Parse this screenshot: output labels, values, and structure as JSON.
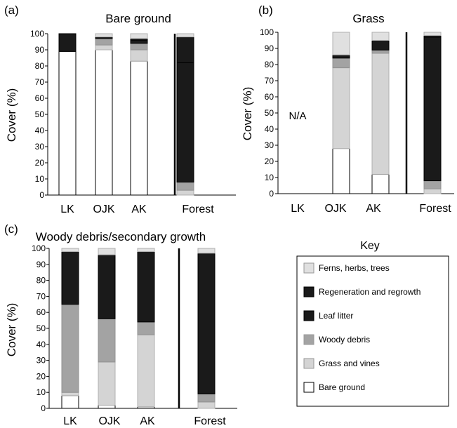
{
  "key": {
    "title": "Key",
    "entries": [
      {
        "name": "Ferns, herbs, trees",
        "color": "#e0e0e0"
      },
      {
        "name": "Regeneration and regrowth",
        "color": "#1a1a1a"
      },
      {
        "name": "Leaf litter",
        "color": "#1a1a1a"
      },
      {
        "name": "Woody debris",
        "color": "#a3a3a3"
      },
      {
        "name": "Grass and vines",
        "color": "#d4d4d4"
      },
      {
        "name": "Bare ground",
        "color": "#ffffff"
      }
    ]
  },
  "chart_data": [
    {
      "type": "bar",
      "stacked": true,
      "panel_label": "(a)",
      "title": "Bare ground",
      "ylabel": "Cover (%)",
      "xlabel": "",
      "ylim": [
        0,
        100
      ],
      "yticks": [
        0,
        10,
        20,
        30,
        40,
        50,
        60,
        70,
        80,
        90,
        100
      ],
      "categories": [
        "LK",
        "OJK",
        "AK",
        "Forest"
      ],
      "series": [
        {
          "name": "Bare ground",
          "values": [
            89,
            90,
            83,
            0
          ]
        },
        {
          "name": "Grass and vines",
          "values": [
            0,
            3,
            7,
            3
          ]
        },
        {
          "name": "Woody debris",
          "values": [
            0,
            4,
            4,
            5
          ]
        },
        {
          "name": "Leaf litter",
          "values": [
            11,
            0,
            2,
            74
          ]
        },
        {
          "name": "Regeneration and regrowth",
          "values": [
            0,
            1,
            1,
            16
          ]
        },
        {
          "name": "Ferns, herbs, trees",
          "values": [
            0,
            2,
            3,
            2
          ]
        }
      ],
      "annotation": ""
    },
    {
      "type": "bar",
      "stacked": true,
      "panel_label": "(b)",
      "title": "Grass",
      "ylabel": "Cover (%)",
      "xlabel": "",
      "ylim": [
        0,
        100
      ],
      "yticks": [
        0,
        10,
        20,
        30,
        40,
        50,
        60,
        70,
        80,
        90,
        100
      ],
      "categories": [
        "LK",
        "OJK",
        "AK",
        "Forest"
      ],
      "series": [
        {
          "name": "Bare ground",
          "values": [
            0,
            28,
            12,
            0
          ]
        },
        {
          "name": "Grass and vines",
          "values": [
            0,
            50,
            75,
            3
          ]
        },
        {
          "name": "Woody debris",
          "values": [
            0,
            6,
            2,
            5
          ]
        },
        {
          "name": "Leaf litter",
          "values": [
            0,
            2,
            6,
            89
          ]
        },
        {
          "name": "Regeneration and regrowth",
          "values": [
            0,
            0,
            0,
            1
          ]
        },
        {
          "name": "Ferns, herbs, trees",
          "values": [
            0,
            14,
            5,
            2
          ]
        }
      ],
      "annotation": "N/A"
    },
    {
      "type": "bar",
      "stacked": true,
      "panel_label": "(c)",
      "title": "Woody debris/secondary growth",
      "ylabel": "Cover (%)",
      "xlabel": "",
      "ylim": [
        0,
        100
      ],
      "yticks": [
        0,
        10,
        20,
        30,
        40,
        50,
        60,
        70,
        80,
        90,
        100
      ],
      "categories": [
        "LK",
        "OJK",
        "AK",
        "Forest"
      ],
      "series": [
        {
          "name": "Bare ground",
          "values": [
            8,
            2,
            1,
            0
          ]
        },
        {
          "name": "Grass and vines",
          "values": [
            2,
            27,
            45,
            4
          ]
        },
        {
          "name": "Woody debris",
          "values": [
            55,
            27,
            8,
            5
          ]
        },
        {
          "name": "Leaf litter",
          "values": [
            33,
            40,
            44,
            88
          ]
        },
        {
          "name": "Regeneration and regrowth",
          "values": [
            0,
            0,
            0,
            0
          ]
        },
        {
          "name": "Ferns, herbs, trees",
          "values": [
            2,
            4,
            2,
            3
          ]
        }
      ],
      "annotation": ""
    }
  ]
}
